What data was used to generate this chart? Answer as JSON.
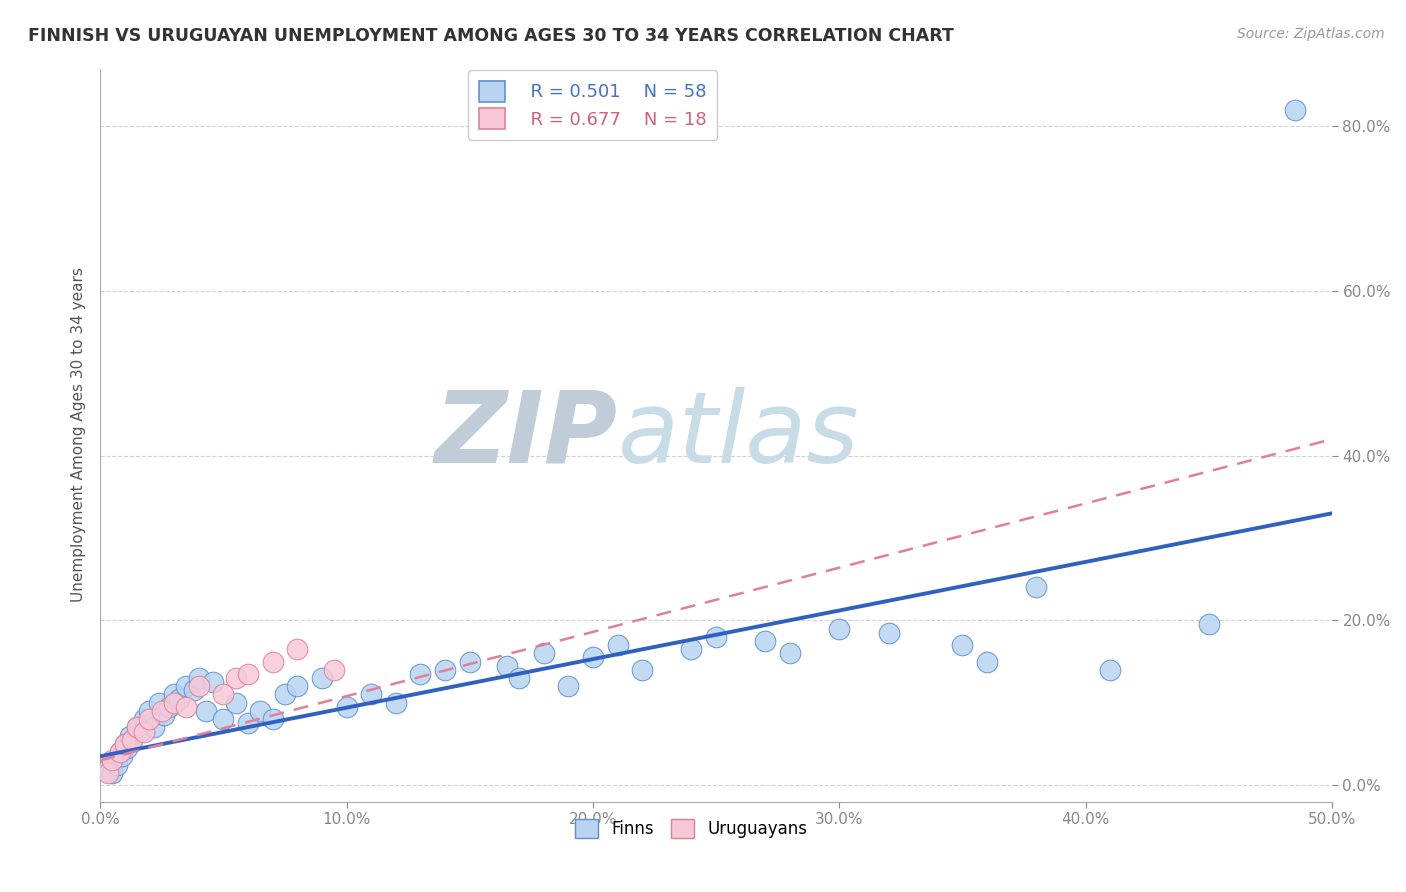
{
  "title": "FINNISH VS URUGUAYAN UNEMPLOYMENT AMONG AGES 30 TO 34 YEARS CORRELATION CHART",
  "source": "Source: ZipAtlas.com",
  "xlabel_ticks": [
    "0.0%",
    "10.0%",
    "20.0%",
    "30.0%",
    "40.0%",
    "50.0%"
  ],
  "xlabel_vals": [
    0,
    10,
    20,
    30,
    40,
    50
  ],
  "ylabel_ticks": [
    "0.0%",
    "20.0%",
    "40.0%",
    "60.0%",
    "80.0%"
  ],
  "ylabel_vals": [
    0,
    20,
    40,
    60,
    80
  ],
  "ylabel_label": "Unemployment Among Ages 30 to 34 years",
  "xlim": [
    0,
    50
  ],
  "ylim": [
    -2,
    87
  ],
  "legend_r_finns": "R = 0.501",
  "legend_n_finns": "N = 58",
  "legend_r_urug": "R = 0.677",
  "legend_n_urug": "N = 18",
  "finns_color": "#b8d4f0",
  "finns_edge_color": "#6090d0",
  "urug_color": "#f8c8d8",
  "urug_edge_color": "#e08098",
  "finns_line_color": "#3060c0",
  "urug_line_color": "#e08098",
  "background_color": "#ffffff",
  "grid_color": "#cccccc",
  "watermark_zip_color": "#c0ccd8",
  "watermark_atlas_color": "#c8dce8",
  "finns_x": [
    0.3,
    0.5,
    0.6,
    0.7,
    0.8,
    0.9,
    1.0,
    1.1,
    1.2,
    1.3,
    1.5,
    1.6,
    1.8,
    2.0,
    2.2,
    2.4,
    2.6,
    2.8,
    3.0,
    3.2,
    3.5,
    3.8,
    4.0,
    4.3,
    4.6,
    5.0,
    5.5,
    6.0,
    6.5,
    7.0,
    7.5,
    8.0,
    9.0,
    10.0,
    11.0,
    12.0,
    13.0,
    14.0,
    15.0,
    16.5,
    17.0,
    18.0,
    19.0,
    20.0,
    21.0,
    22.0,
    24.0,
    25.0,
    27.0,
    28.0,
    30.0,
    32.0,
    35.0,
    36.0,
    38.0,
    41.0,
    45.0,
    48.5
  ],
  "finns_y": [
    2.0,
    1.5,
    3.0,
    2.5,
    4.0,
    3.5,
    5.0,
    4.5,
    6.0,
    5.5,
    7.0,
    6.5,
    8.0,
    9.0,
    7.0,
    10.0,
    8.5,
    9.5,
    11.0,
    10.5,
    12.0,
    11.5,
    13.0,
    9.0,
    12.5,
    8.0,
    10.0,
    7.5,
    9.0,
    8.0,
    11.0,
    12.0,
    13.0,
    9.5,
    11.0,
    10.0,
    13.5,
    14.0,
    15.0,
    14.5,
    13.0,
    16.0,
    12.0,
    15.5,
    17.0,
    14.0,
    16.5,
    18.0,
    17.5,
    16.0,
    19.0,
    18.5,
    17.0,
    15.0,
    24.0,
    14.0,
    19.5,
    82.0
  ],
  "urug_x": [
    0.3,
    0.5,
    0.8,
    1.0,
    1.3,
    1.5,
    1.8,
    2.0,
    2.5,
    3.0,
    3.5,
    4.0,
    5.0,
    5.5,
    6.0,
    7.0,
    8.0,
    9.5
  ],
  "urug_y": [
    1.5,
    3.0,
    4.0,
    5.0,
    5.5,
    7.0,
    6.5,
    8.0,
    9.0,
    10.0,
    9.5,
    12.0,
    11.0,
    13.0,
    13.5,
    15.0,
    16.5,
    14.0
  ],
  "finns_trend_x0": 0,
  "finns_trend_x1": 50,
  "finns_trend_y0": 3.5,
  "finns_trend_y1": 33.0,
  "urug_trend_x0": 0,
  "urug_trend_x1": 50,
  "urug_trend_y0": 3.0,
  "urug_trend_y1": 42.0
}
